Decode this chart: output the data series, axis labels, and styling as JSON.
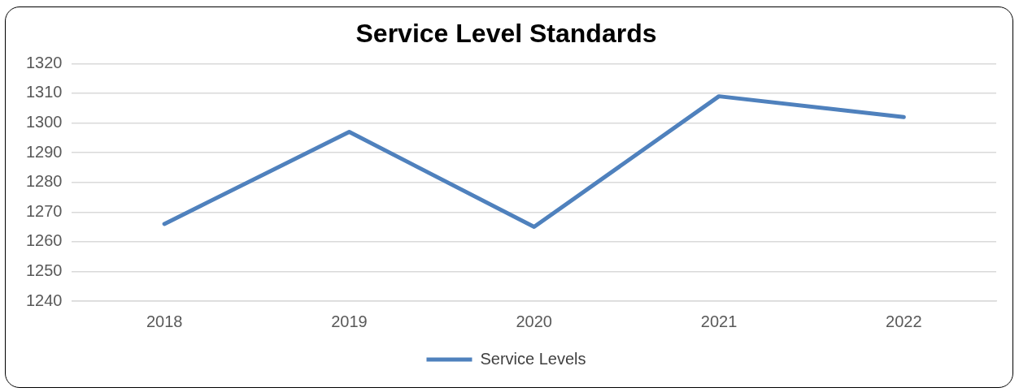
{
  "chart_data": {
    "type": "line",
    "title": "Service Level Standards",
    "categories": [
      "2018",
      "2019",
      "2020",
      "2021",
      "2022"
    ],
    "series": [
      {
        "name": "Service Levels",
        "color": "#4f81bd",
        "values": [
          1266,
          1297,
          1265,
          1309,
          1302
        ]
      }
    ],
    "ylim": [
      1240,
      1320
    ],
    "yticks": [
      1240,
      1250,
      1260,
      1270,
      1280,
      1290,
      1300,
      1310,
      1320
    ],
    "grid": "y",
    "legend": "bottom",
    "marker": "none",
    "line_style": "solid"
  }
}
